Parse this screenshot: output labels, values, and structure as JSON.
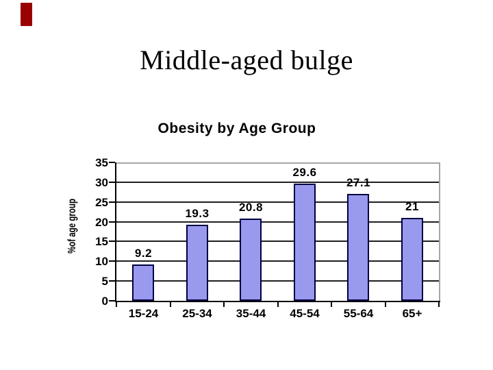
{
  "slide": {
    "title": "Middle-aged bulge",
    "accent_color": "#990000",
    "background_color": "#ffffff"
  },
  "chart_data": {
    "type": "bar",
    "title": "Obesity by Age Group",
    "categories": [
      "15-24",
      "25-34",
      "35-44",
      "45-54",
      "55-64",
      "65+"
    ],
    "values": [
      9.2,
      19.3,
      20.8,
      29.6,
      27.1,
      21
    ],
    "value_labels": [
      "9.2",
      "19.3",
      "20.8",
      "29.6",
      "27.1",
      "21"
    ],
    "xlabel": "",
    "ylabel": "%of age group",
    "ylim": [
      0,
      35
    ],
    "yticks": [
      35,
      30,
      25,
      20,
      15,
      10,
      5,
      0
    ],
    "grid": true,
    "legend": "none",
    "bar_fill": "#9999ee",
    "bar_border": "#000040",
    "text_color": "#000000"
  }
}
